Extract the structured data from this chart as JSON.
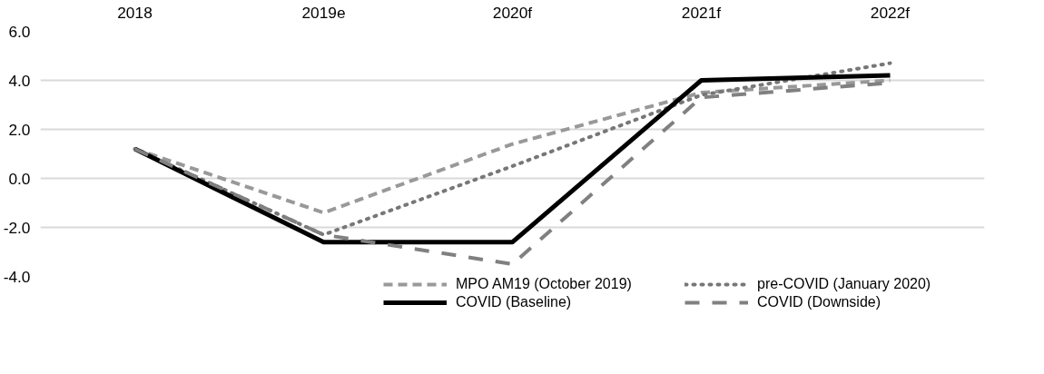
{
  "chart_data": {
    "type": "line",
    "categories": [
      "2018",
      "2019e",
      "2020f",
      "2021f",
      "2022f"
    ],
    "series": [
      {
        "name": "MPO AM19 (October 2019)",
        "color": "#999999",
        "line_style": "dashed",
        "values": [
          1.2,
          -1.4,
          1.4,
          3.5,
          4.0
        ]
      },
      {
        "name": "pre-COVID (January 2020)",
        "color": "#777777",
        "line_style": "dotted",
        "values": [
          1.2,
          -2.3,
          0.5,
          3.4,
          4.7
        ]
      },
      {
        "name": "COVID (Baseline)",
        "color": "#000000",
        "line_style": "solid",
        "values": [
          1.2,
          -2.6,
          -2.6,
          4.0,
          4.2
        ]
      },
      {
        "name": "COVID (Downside)",
        "color": "#808080",
        "line_style": "dashed",
        "values": [
          1.2,
          -2.3,
          -3.5,
          3.3,
          3.9
        ]
      }
    ],
    "ylim": [
      -4,
      6
    ],
    "yticks": [
      {
        "value": -4,
        "label": "-4.0"
      },
      {
        "value": -2,
        "label": "-2.0"
      },
      {
        "value": 0,
        "label": "0.0"
      },
      {
        "value": 2,
        "label": "2.0"
      },
      {
        "value": 4,
        "label": "4.0"
      },
      {
        "value": 6,
        "label": "6.0"
      }
    ],
    "grid": "y",
    "legend": "bottom",
    "marker": "none"
  }
}
